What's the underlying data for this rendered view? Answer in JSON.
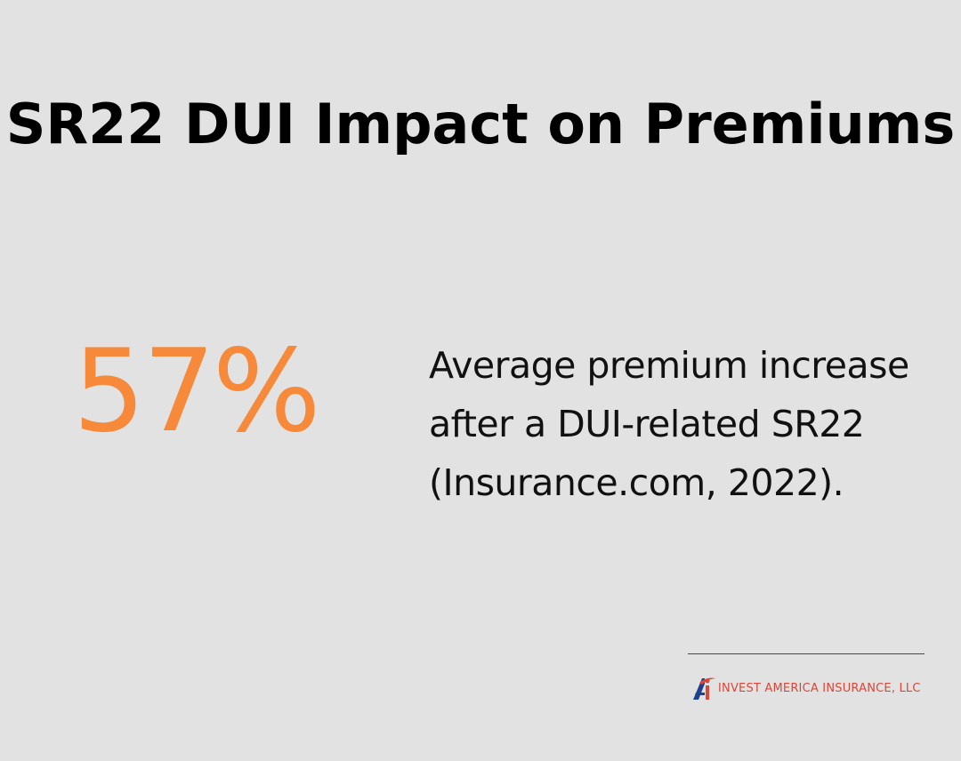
{
  "title": "SR22 DUI Impact on Premiums",
  "stat": {
    "value": "57%",
    "description": "Average premium increase after a DUI-related SR22 (Insurance.com, 2022)."
  },
  "brand": {
    "name": "INVEST AMERICA INSURANCE, LLC",
    "logo_icon": "invest-america-ai-logo-icon"
  },
  "colors": {
    "background": "#e1e2e1",
    "accent": "#f7893b",
    "brand_red": "#d9473a",
    "brand_blue": "#1f3f8f"
  }
}
